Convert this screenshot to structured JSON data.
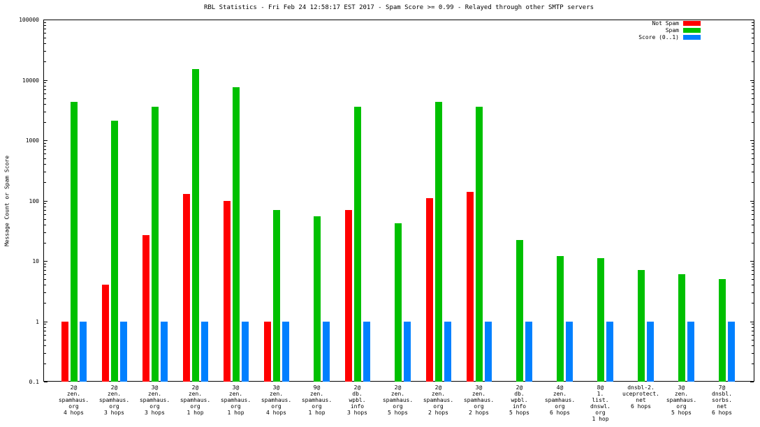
{
  "chart_data": {
    "type": "bar",
    "title": "RBL Statistics - Fri Feb 24 12:58:17 EST 2017 - Spam Score >= 0.99 - Relayed through other SMTP servers",
    "ylabel": "Message Count or Spam Score",
    "y_scale": "log",
    "ylim": [
      0.1,
      100000
    ],
    "yticks": [
      0.1,
      1,
      10,
      100,
      1000,
      10000,
      100000
    ],
    "ytick_labels": [
      "0.1",
      "1",
      "10",
      "100",
      "1000",
      "10000",
      "100000"
    ],
    "grid": false,
    "legend_position": "top-right",
    "categories": [
      [
        "2@",
        "zen.",
        "spamhaus.",
        "org",
        "4 hops"
      ],
      [
        "2@",
        "zen.",
        "spamhaus.",
        "org",
        "3 hops"
      ],
      [
        "3@",
        "zen.",
        "spamhaus.",
        "org",
        "3 hops"
      ],
      [
        "2@",
        "zen.",
        "spamhaus.",
        "org",
        "1 hop"
      ],
      [
        "3@",
        "zen.",
        "spamhaus.",
        "org",
        "1 hop"
      ],
      [
        "3@",
        "zen.",
        "spamhaus.",
        "org",
        "4 hops"
      ],
      [
        "9@",
        "zen.",
        "spamhaus.",
        "org",
        "1 hop"
      ],
      [
        "2@",
        "db.",
        "wpbl.",
        "info",
        "3 hops"
      ],
      [
        "2@",
        "zen.",
        "spamhaus.",
        "org",
        "5 hops"
      ],
      [
        "2@",
        "zen.",
        "spamhaus.",
        "org",
        "2 hops"
      ],
      [
        "3@",
        "zen.",
        "spamhaus.",
        "org",
        "2 hops"
      ],
      [
        "2@",
        "db.",
        "wpbl.",
        "info",
        "5 hops"
      ],
      [
        "4@",
        "zen.",
        "spamhaus.",
        "org",
        "6 hops"
      ],
      [
        "8@",
        "1.",
        "list.",
        "dnswl.",
        "org",
        "1 hop"
      ],
      [
        "dnsbl-2.",
        "uceprotect.",
        "net",
        "6 hops"
      ],
      [
        "3@",
        "zen.",
        "spamhaus.",
        "org",
        "5 hops"
      ],
      [
        "7@",
        "dnsbl.",
        "sorbs.",
        "net",
        "6 hops"
      ]
    ],
    "series": [
      {
        "name": "Not Spam",
        "color": "#ff0000",
        "values": [
          1,
          4,
          27,
          130,
          100,
          1,
          null,
          70,
          null,
          110,
          140,
          null,
          null,
          null,
          null,
          null,
          null
        ]
      },
      {
        "name": "Spam",
        "color": "#00c000",
        "values": [
          4300,
          2100,
          3600,
          15000,
          7500,
          70,
          55,
          3600,
          42,
          4300,
          3600,
          22,
          12,
          11,
          7,
          6,
          5
        ]
      },
      {
        "name": "Score (0..1)",
        "color": "#0080ff",
        "values": [
          1,
          1,
          1,
          1,
          1,
          1,
          1,
          1,
          1,
          1,
          1,
          1,
          1,
          1,
          1,
          1,
          1
        ]
      }
    ],
    "bar_baseline": 0.1
  }
}
